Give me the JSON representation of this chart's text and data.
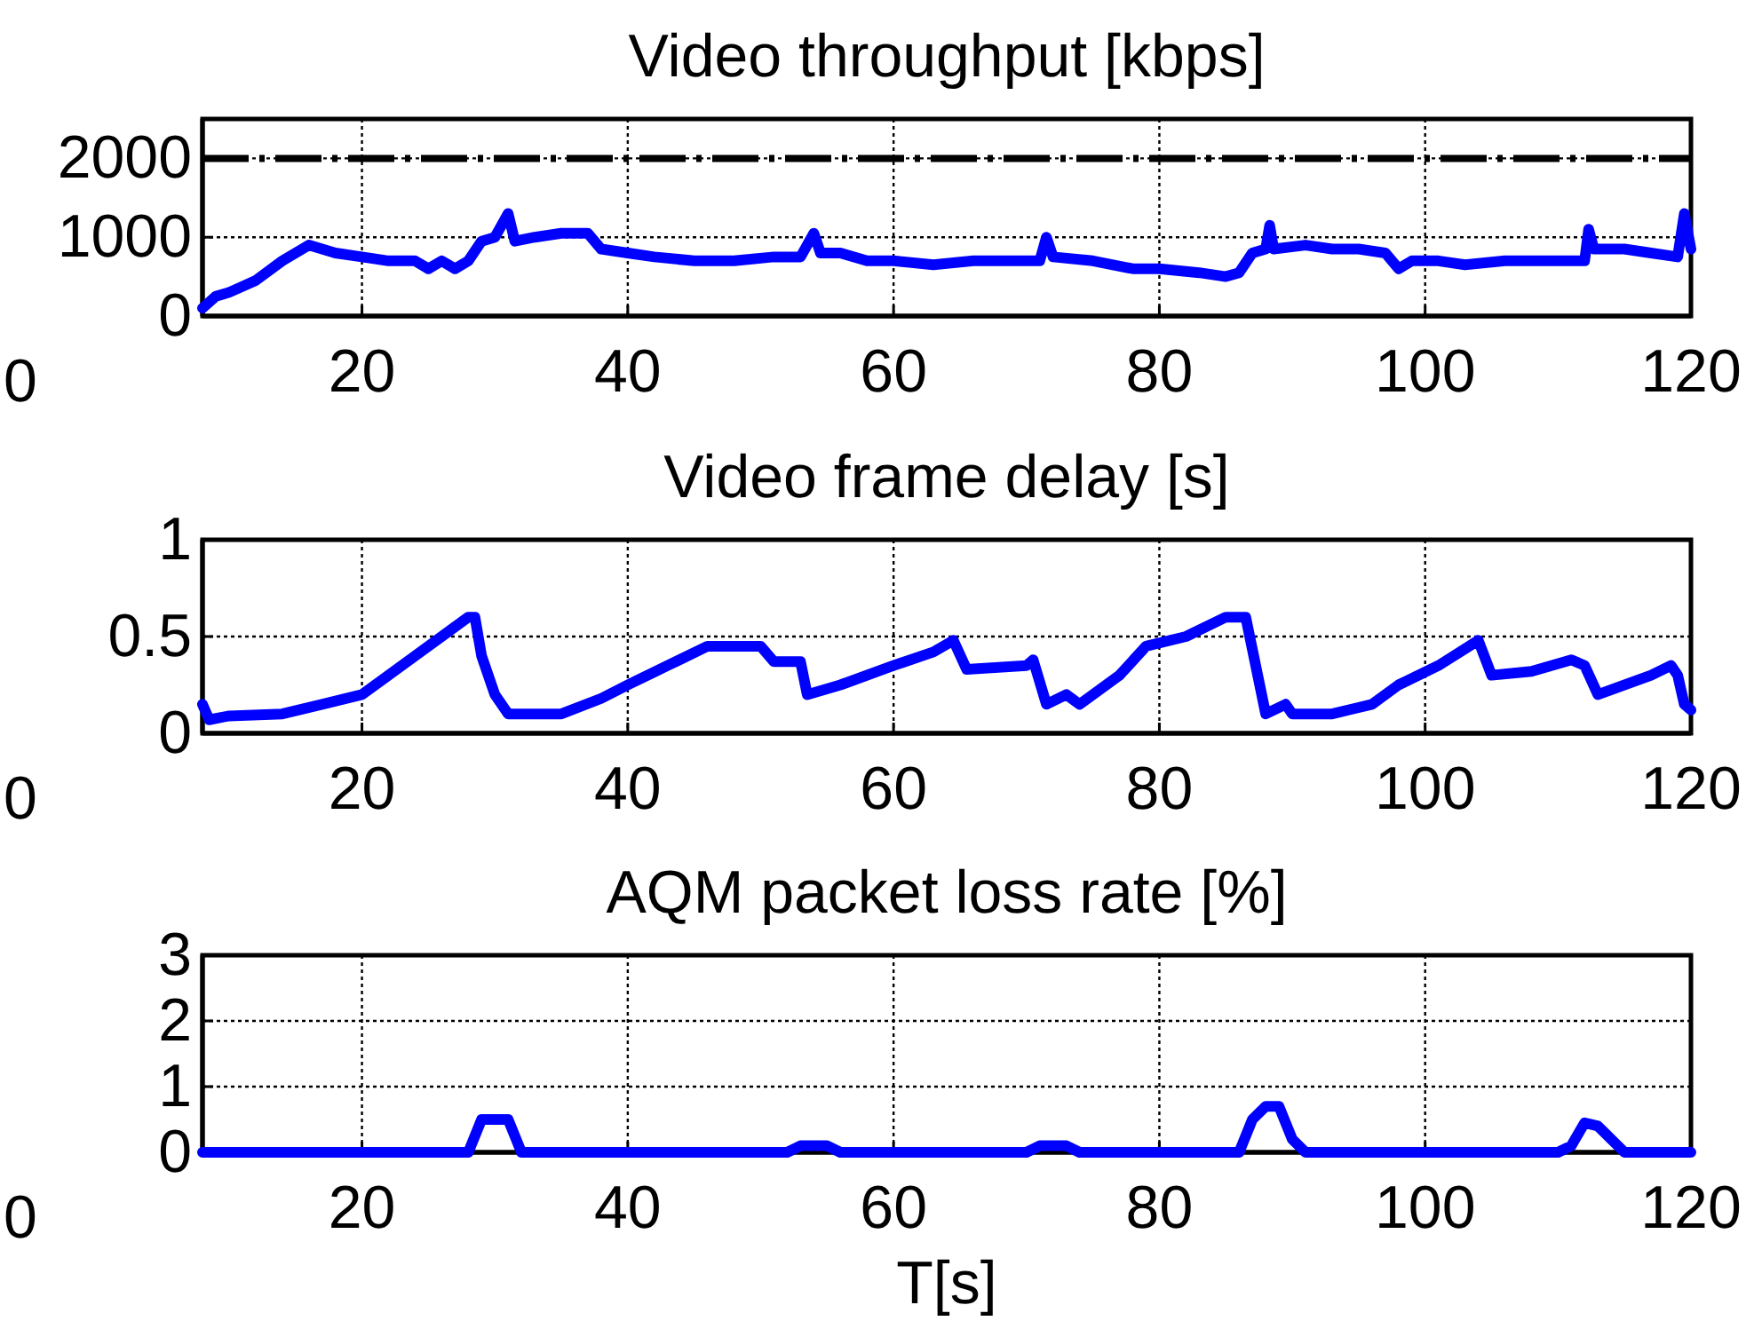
{
  "chart_data": [
    {
      "type": "line",
      "title": "Video throughput [kbps]",
      "x": [
        8,
        9,
        10,
        12,
        14,
        16,
        18,
        20,
        22,
        24,
        25,
        26,
        27,
        28,
        29,
        30,
        31,
        31.5,
        33,
        35,
        37,
        38,
        40,
        42,
        45,
        48,
        51,
        53,
        54,
        54.5,
        56,
        58,
        60,
        63,
        66,
        69,
        71,
        71.5,
        72,
        75,
        78,
        80,
        83,
        85,
        86,
        87,
        88,
        88.3,
        88.6,
        91,
        93,
        95,
        97,
        98,
        99,
        101,
        103,
        106,
        110,
        112,
        112.3,
        112.7,
        115,
        117,
        119,
        119.5,
        120
      ],
      "series": [
        {
          "color": "#0000ff",
          "values": [
            100,
            250,
            300,
            450,
            700,
            900,
            800,
            750,
            700,
            700,
            600,
            700,
            600,
            700,
            950,
            1000,
            1300,
            950,
            1000,
            1050,
            1050,
            850,
            800,
            750,
            700,
            700,
            750,
            750,
            1050,
            800,
            800,
            700,
            700,
            650,
            700,
            700,
            700,
            1000,
            750,
            700,
            600,
            600,
            550,
            500,
            550,
            800,
            850,
            1150,
            850,
            900,
            850,
            850,
            800,
            600,
            700,
            700,
            650,
            700,
            700,
            700,
            1100,
            850,
            850,
            800,
            750,
            1300,
            850
          ]
        }
      ],
      "xlim": [
        8,
        120
      ],
      "xticks": [
        20,
        40,
        60,
        80,
        100,
        120
      ],
      "ylim": [
        0,
        2500
      ],
      "yticks": [
        0,
        1000,
        2000
      ],
      "grid": true,
      "ref_lines": [
        {
          "axis": "y",
          "value": 2000,
          "color": "#000000",
          "line_style": "dashed"
        }
      ],
      "annotations": [
        "0"
      ]
    },
    {
      "type": "line",
      "title": "Video frame delay [s]",
      "x": [
        8,
        8.5,
        10,
        14,
        17,
        20,
        22,
        25,
        28,
        28.5,
        29,
        30,
        31,
        35,
        38,
        40,
        43,
        46,
        50,
        51,
        53,
        53.5,
        56,
        60,
        63,
        64.5,
        65.5,
        70,
        70.5,
        71.5,
        73,
        74,
        77,
        79,
        82,
        85,
        86.5,
        88,
        89.5,
        90,
        93,
        96,
        98,
        101,
        104,
        105,
        108,
        111,
        112,
        113,
        117,
        118.5,
        119,
        119.5,
        120
      ],
      "series": [
        {
          "color": "#0000ff",
          "values": [
            0.15,
            0.07,
            0.09,
            0.1,
            0.15,
            0.2,
            0.3,
            0.45,
            0.6,
            0.6,
            0.4,
            0.2,
            0.1,
            0.1,
            0.18,
            0.25,
            0.35,
            0.45,
            0.45,
            0.37,
            0.37,
            0.2,
            0.25,
            0.35,
            0.42,
            0.48,
            0.33,
            0.35,
            0.38,
            0.15,
            0.2,
            0.15,
            0.3,
            0.45,
            0.5,
            0.6,
            0.6,
            0.1,
            0.15,
            0.1,
            0.1,
            0.15,
            0.25,
            0.35,
            0.48,
            0.3,
            0.32,
            0.38,
            0.35,
            0.2,
            0.3,
            0.35,
            0.3,
            0.15,
            0.12
          ]
        }
      ],
      "xlim": [
        8,
        120
      ],
      "xticks": [
        20,
        40,
        60,
        80,
        100,
        120
      ],
      "ylim": [
        0,
        1
      ],
      "yticks": [
        0,
        0.5,
        1
      ],
      "grid": true,
      "annotations": [
        "0"
      ]
    },
    {
      "type": "line",
      "title": "AQM packet loss rate [%]",
      "xlabel": "T[s]",
      "x": [
        8,
        28,
        29,
        31,
        32,
        52,
        53,
        55,
        56,
        70,
        71,
        73,
        74,
        86,
        87,
        88,
        89,
        90,
        91,
        110,
        111,
        112,
        113,
        114,
        115,
        120
      ],
      "series": [
        {
          "color": "#0000ff",
          "values": [
            0,
            0,
            0.5,
            0.5,
            0,
            0,
            0.1,
            0.1,
            0,
            0,
            0.1,
            0.1,
            0,
            0,
            0.5,
            0.7,
            0.7,
            0.2,
            0,
            0,
            0.1,
            0.45,
            0.4,
            0.2,
            0,
            0
          ]
        }
      ],
      "xlim": [
        8,
        120
      ],
      "xticks": [
        20,
        40,
        60,
        80,
        100,
        120
      ],
      "ylim": [
        0,
        3
      ],
      "yticks": [
        0,
        1,
        2,
        3
      ],
      "grid": true,
      "annotations": [
        "0"
      ]
    }
  ]
}
